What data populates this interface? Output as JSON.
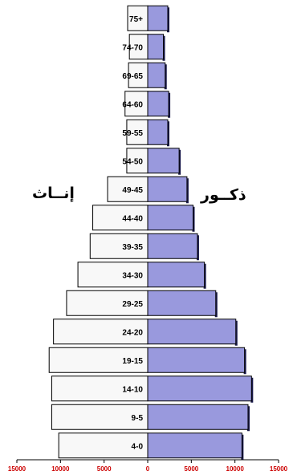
{
  "chart_data": {
    "type": "bar",
    "orientation": "horizontal-population-pyramid",
    "categories": [
      "4-0",
      "9-5",
      "14-10",
      "19-15",
      "24-20",
      "29-25",
      "34-30",
      "39-35",
      "44-40",
      "49-45",
      "54-50",
      "59-55",
      "64-60",
      "69-65",
      "74-70",
      "75+"
    ],
    "series": [
      {
        "name": "إنــاث",
        "values": [
          10200,
          11000,
          11000,
          11300,
          10800,
          9300,
          8000,
          6600,
          6300,
          4600,
          2400,
          2400,
          2600,
          2200,
          2100,
          2300
        ]
      },
      {
        "name": "ذكــور",
        "values": [
          10800,
          11500,
          11900,
          11100,
          10100,
          7800,
          6500,
          5700,
          5200,
          4500,
          3600,
          2300,
          2400,
          2000,
          1800,
          2300
        ]
      }
    ],
    "xlim": [
      -15000,
      15000
    ],
    "xticks": [
      -15000,
      -10000,
      -5000,
      0,
      5000,
      10000,
      15000
    ],
    "xtick_labels": [
      "15000",
      "10000",
      "5000",
      "0",
      "5000",
      "10000",
      "15000"
    ],
    "grid": false,
    "legend": "none",
    "colors": {
      "female": "#f8f8f8",
      "male": "#9999dd",
      "male_shadow": "#1a1a4a",
      "tick_text": "#cc0000"
    }
  }
}
